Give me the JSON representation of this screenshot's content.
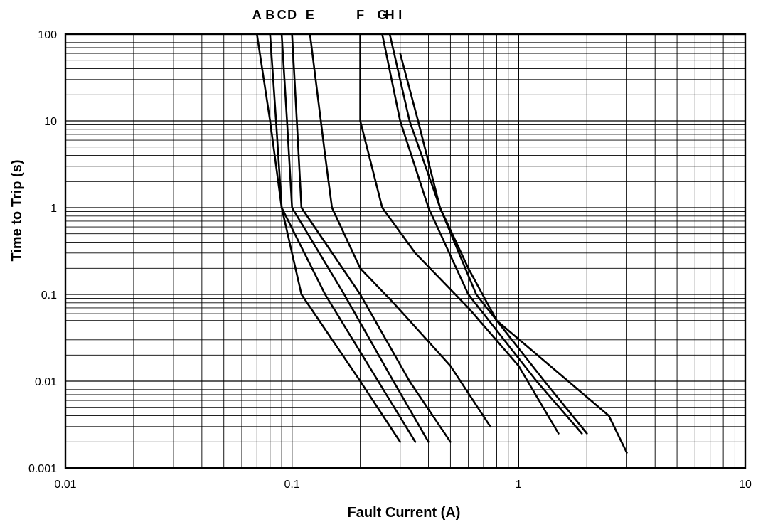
{
  "chart_data": {
    "type": "line",
    "xlabel": "Fault Current (A)",
    "ylabel": "Time to Trip (s)",
    "x_scale": "log",
    "y_scale": "log",
    "xlim": [
      0.01,
      10
    ],
    "ylim": [
      0.001,
      100
    ],
    "x_ticks": [
      {
        "value": 0.01,
        "label": "0.01"
      },
      {
        "value": 0.1,
        "label": "0.1"
      },
      {
        "value": 1,
        "label": "1"
      },
      {
        "value": 10,
        "label": "10"
      }
    ],
    "y_ticks": [
      {
        "value": 0.001,
        "label": "0.001"
      },
      {
        "value": 0.01,
        "label": "0.01"
      },
      {
        "value": 0.1,
        "label": "0.1"
      },
      {
        "value": 1,
        "label": "1"
      },
      {
        "value": 10,
        "label": "10"
      },
      {
        "value": 100,
        "label": "100"
      }
    ],
    "grid": true,
    "curve_labels_position": "top",
    "series": [
      {
        "name": "A",
        "points": [
          [
            0.07,
            100
          ],
          [
            0.08,
            10
          ],
          [
            0.09,
            1
          ],
          [
            0.11,
            0.1
          ],
          [
            0.2,
            0.01
          ],
          [
            0.3,
            0.002
          ]
        ]
      },
      {
        "name": "B",
        "points": [
          [
            0.08,
            100
          ],
          [
            0.085,
            10
          ],
          [
            0.09,
            1
          ],
          [
            0.14,
            0.1
          ],
          [
            0.24,
            0.01
          ],
          [
            0.35,
            0.002
          ]
        ]
      },
      {
        "name": "C",
        "points": [
          [
            0.09,
            100
          ],
          [
            0.095,
            10
          ],
          [
            0.1,
            1
          ],
          [
            0.17,
            0.1
          ],
          [
            0.28,
            0.01
          ],
          [
            0.4,
            0.002
          ]
        ]
      },
      {
        "name": "D",
        "points": [
          [
            0.1,
            100
          ],
          [
            0.105,
            10
          ],
          [
            0.11,
            1
          ],
          [
            0.2,
            0.1
          ],
          [
            0.33,
            0.01
          ],
          [
            0.5,
            0.002
          ]
        ]
      },
      {
        "name": "E",
        "points": [
          [
            0.12,
            100
          ],
          [
            0.14,
            4
          ],
          [
            0.15,
            1
          ],
          [
            0.2,
            0.2
          ],
          [
            0.28,
            0.08
          ],
          [
            0.5,
            0.015
          ],
          [
            0.75,
            0.003
          ]
        ]
      },
      {
        "name": "F",
        "points": [
          [
            0.2,
            100
          ],
          [
            0.2,
            10
          ],
          [
            0.25,
            1
          ],
          [
            0.35,
            0.3
          ],
          [
            0.6,
            0.07
          ],
          [
            1,
            0.015
          ],
          [
            1.5,
            0.0025
          ]
        ]
      },
      {
        "name": "G",
        "points": [
          [
            0.25,
            100
          ],
          [
            0.3,
            10
          ],
          [
            0.4,
            1
          ],
          [
            0.6,
            0.1
          ],
          [
            1.2,
            0.01
          ],
          [
            1.9,
            0.0025
          ]
        ]
      },
      {
        "name": "H",
        "points": [
          [
            0.27,
            100
          ],
          [
            0.33,
            10
          ],
          [
            0.45,
            1
          ],
          [
            0.65,
            0.1
          ],
          [
            1.3,
            0.01
          ],
          [
            2,
            0.0025
          ]
        ]
      },
      {
        "name": "I",
        "points": [
          [
            0.3,
            60
          ],
          [
            0.36,
            10
          ],
          [
            0.45,
            1
          ],
          [
            0.6,
            0.2
          ],
          [
            0.8,
            0.05
          ],
          [
            2.5,
            0.004
          ],
          [
            3,
            0.0015
          ]
        ]
      }
    ]
  }
}
